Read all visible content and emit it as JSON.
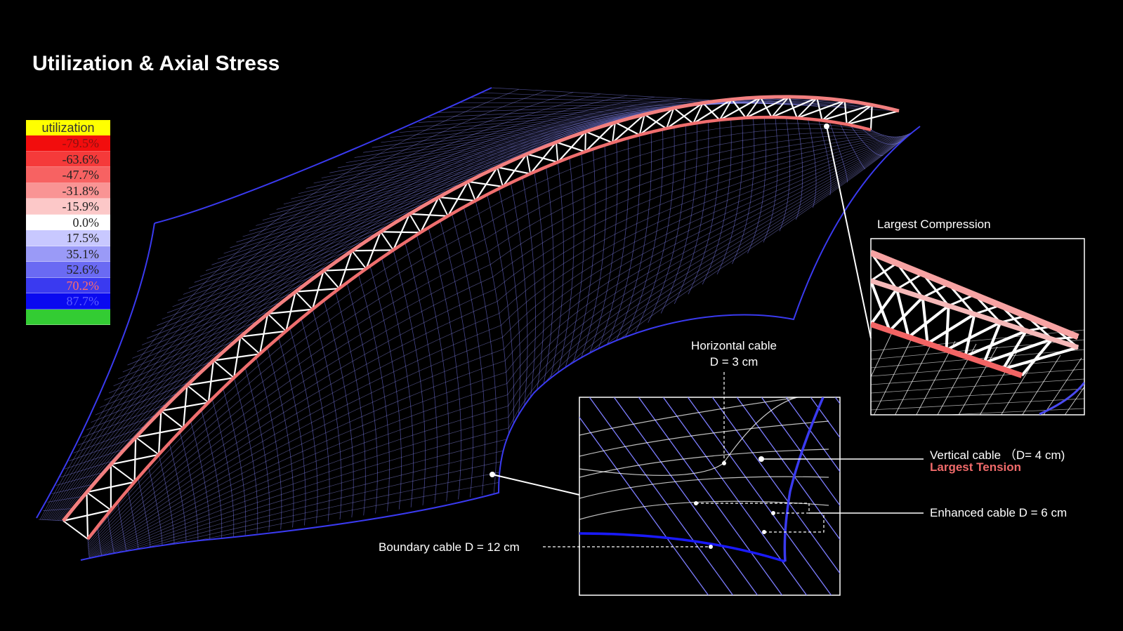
{
  "title": "Utilization & Axial Stress",
  "legend": {
    "header": "utilization",
    "entries": [
      {
        "label": "-79.5%",
        "color": "#f20d0d"
      },
      {
        "label": "-63.6%",
        "color": "#f53a3a"
      },
      {
        "label": "-47.7%",
        "color": "#f76262"
      },
      {
        "label": "-31.8%",
        "color": "#f99494"
      },
      {
        "label": "-15.9%",
        "color": "#fcc8c8"
      },
      {
        "label": "0.0%",
        "color": "#ffffff"
      },
      {
        "label": "17.5%",
        "color": "#c8c8ff"
      },
      {
        "label": "35.1%",
        "color": "#9a9af7"
      },
      {
        "label": "52.6%",
        "color": "#6a6af3"
      },
      {
        "label": "70.2%",
        "color": "#3a3af0"
      },
      {
        "label": "87.7%",
        "color": "#0a0af0"
      },
      {
        "label": "",
        "color": "#33cc33"
      }
    ]
  },
  "annotations": {
    "largest_compression": "Largest Compression",
    "horizontal_cable": "Horizontal cable",
    "horizontal_cable_d": "D = 3 cm",
    "vertical_cable": "Vertical cable （D= 4 cm)",
    "largest_tension": "Largest Tension",
    "enhanced_cable": "Enhanced cable D = 6 cm",
    "boundary_cable": "Boundary cable D = 12 cm"
  },
  "colors": {
    "background": "#000000",
    "mesh": "#8a8aff",
    "boundary": "#3a3af0",
    "truss": "#ffffff",
    "chord": "#f07a7a",
    "tension_label": "#f06a6a"
  }
}
